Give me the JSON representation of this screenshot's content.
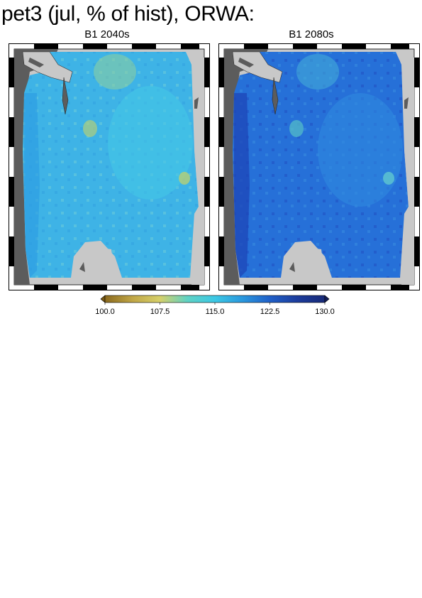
{
  "title": "pet3 (jul, % of hist), ORWA:",
  "panels": [
    {
      "label": "B1 2040s"
    },
    {
      "label": "B1 2080s"
    }
  ],
  "colorbar": {
    "ticks": [
      "100.0",
      "107.5",
      "115.0",
      "122.5",
      "130.0"
    ],
    "min": 100.0,
    "max": 130.0,
    "colors": [
      "#8b6a1e",
      "#c0a646",
      "#d6d06a",
      "#5fd2c4",
      "#3cc8e4",
      "#2a98de",
      "#2060c8",
      "#1c3c9c",
      "#182a78"
    ]
  },
  "colors": {
    "ocean": "#5c5c5c",
    "land_outside": "#c8c8c8",
    "panel1_field": "#3eb3e6",
    "panel2_field": "#2670d8"
  }
}
